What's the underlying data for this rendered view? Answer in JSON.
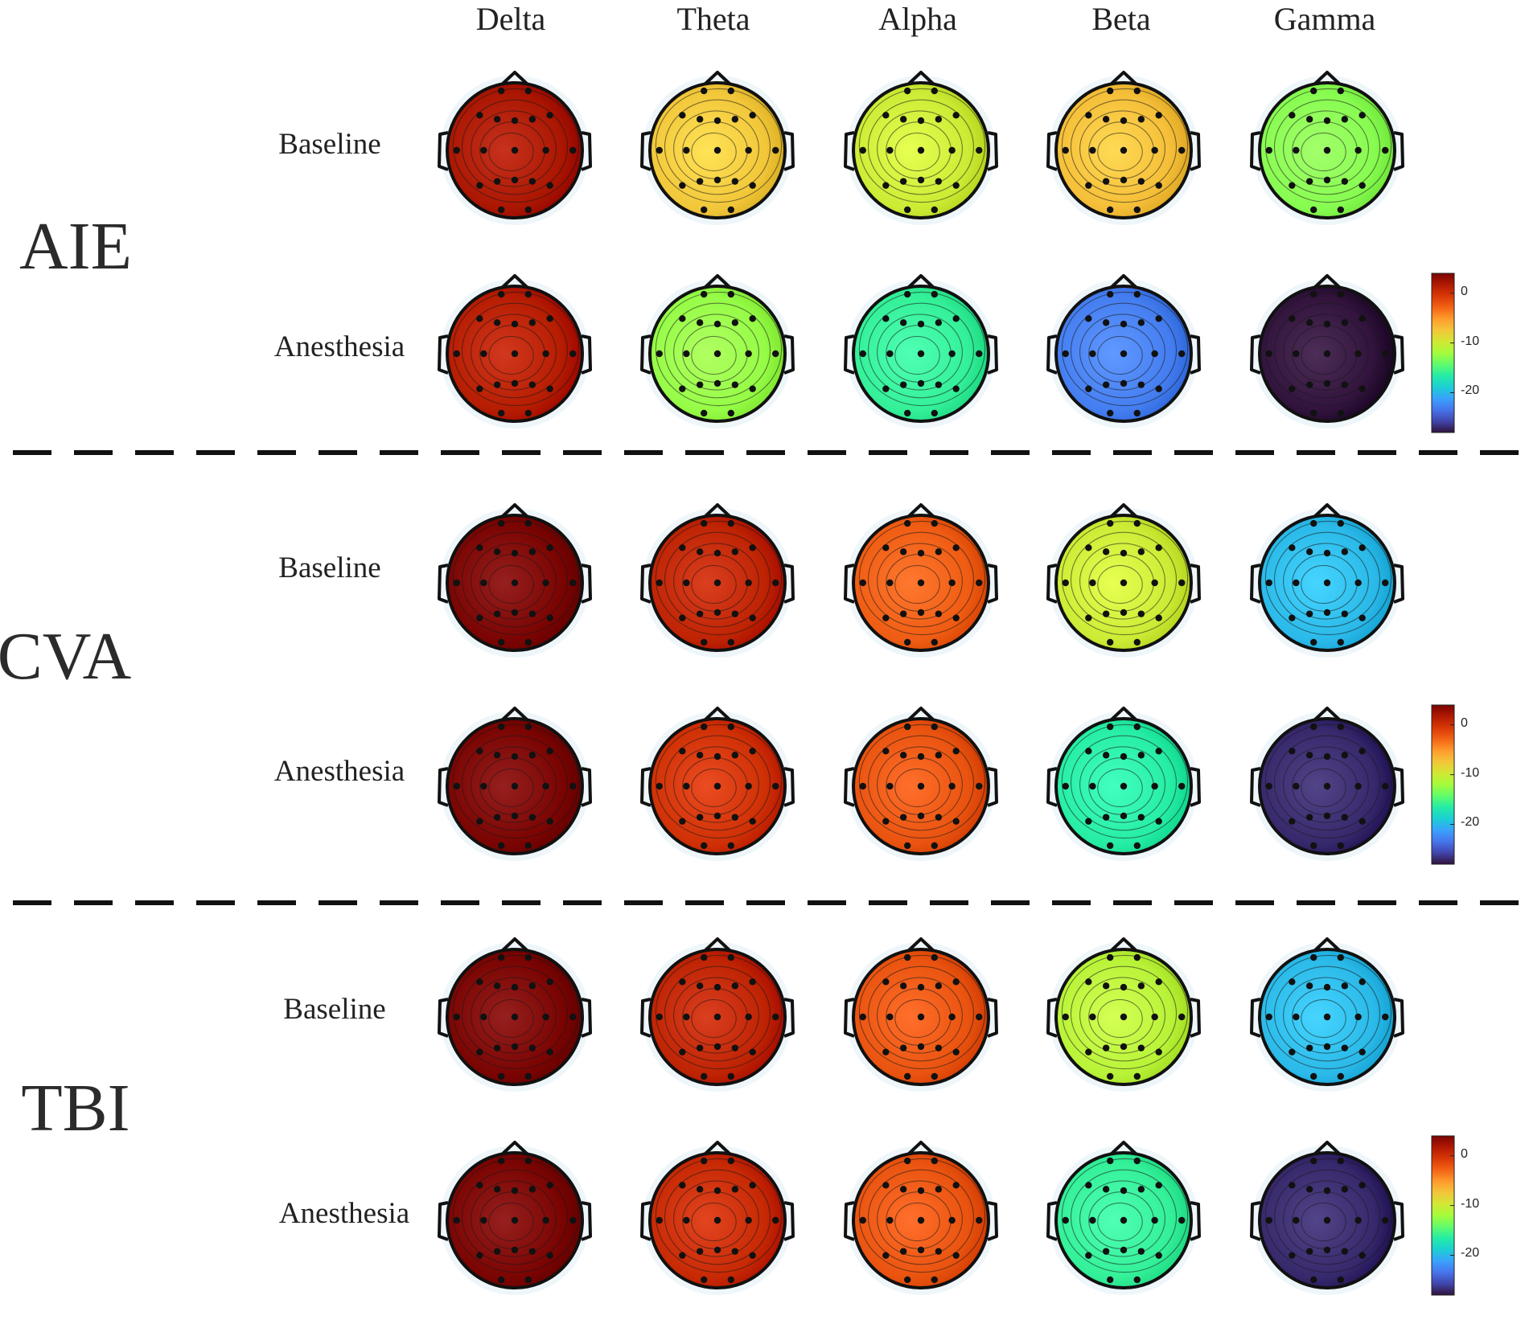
{
  "bands": [
    "Delta",
    "Theta",
    "Alpha",
    "Beta",
    "Gamma"
  ],
  "groups": [
    {
      "name": "AIE",
      "rows": [
        {
          "label": "Baseline",
          "values": [
            2.0,
            -7.5,
            -10.0,
            -7.0,
            -13.0
          ]
        },
        {
          "label": "Anesthesia",
          "values": [
            1.5,
            -12.5,
            -16.0,
            -23.0,
            -30.0
          ]
        }
      ]
    },
    {
      "name": "CVA",
      "rows": [
        {
          "label": "Baseline",
          "values": [
            8.0,
            1.0,
            -2.5,
            -10.0,
            -20.0
          ]
        },
        {
          "label": "Anesthesia",
          "values": [
            8.5,
            0.0,
            -2.0,
            -16.5,
            -27.0
          ]
        }
      ]
    },
    {
      "name": "TBI",
      "rows": [
        {
          "label": "Baseline",
          "values": [
            9.0,
            1.0,
            -2.0,
            -11.0,
            -20.0
          ]
        },
        {
          "label": "Anesthesia",
          "values": [
            9.0,
            0.5,
            -2.0,
            -16.0,
            -27.0
          ]
        }
      ]
    }
  ],
  "colorbar": {
    "ticks": [
      "0",
      "-10",
      "-20"
    ],
    "tick_values": [
      0,
      -10,
      -20
    ],
    "range": [
      -28,
      4
    ],
    "colormap": [
      "#30123b",
      "#4145ab",
      "#4675ed",
      "#39a2fc",
      "#1bcfd4",
      "#24eca6",
      "#61fc6c",
      "#a4fc3b",
      "#d1e834",
      "#f3c63a",
      "#fe9b2d",
      "#f36315",
      "#d93806",
      "#b11901",
      "#7a0402"
    ]
  },
  "electrode_color": "#111111"
}
